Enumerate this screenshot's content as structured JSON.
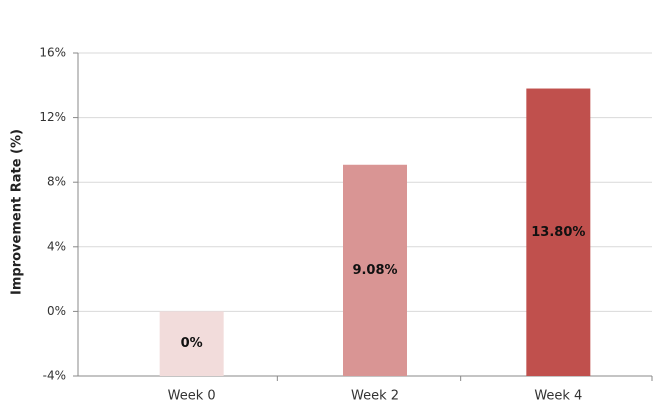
{
  "chart_data": {
    "type": "bar",
    "y_label": "Improvement Rate (%)",
    "categories": [
      "Week 0",
      "Week 2",
      "Week 4"
    ],
    "values": [
      0,
      9.08,
      13.8
    ],
    "value_labels": [
      "0%",
      "9.08%",
      "13.80%"
    ],
    "colors": [
      "#f2dcdb",
      "#d99594",
      "#c0504d"
    ],
    "ylim": [
      -4,
      16
    ],
    "yticks": [
      {
        "value": -4,
        "label": "-4%"
      },
      {
        "value": 0,
        "label": "0%"
      },
      {
        "value": 4,
        "label": "4%"
      },
      {
        "value": 8,
        "label": "8%"
      },
      {
        "value": 12,
        "label": "12%"
      },
      {
        "value": 16,
        "label": "16%"
      }
    ],
    "grid": true
  }
}
